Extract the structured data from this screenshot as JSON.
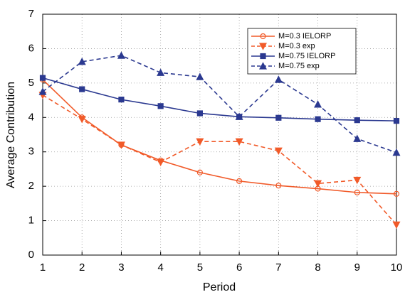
{
  "chart_data": {
    "type": "line",
    "x_label": "Period",
    "y_label": "Average Contribution",
    "x": [
      1,
      2,
      3,
      4,
      5,
      6,
      7,
      8,
      9,
      10
    ],
    "series": [
      {
        "name": "M=0.3 IELORP",
        "color": "#f15a29",
        "marker": "circle",
        "dashed": false,
        "values": [
          5.1,
          4.0,
          3.2,
          2.75,
          2.4,
          2.15,
          2.02,
          1.93,
          1.82,
          1.78
        ]
      },
      {
        "name": "M=0.3 exp",
        "color": "#f15a29",
        "marker": "triangle-down",
        "dashed": true,
        "values": [
          4.65,
          3.95,
          3.2,
          2.7,
          3.3,
          3.3,
          3.03,
          2.08,
          2.18,
          0.88
        ]
      },
      {
        "name": "M=0.75 IELORP",
        "color": "#2b3990",
        "marker": "square",
        "dashed": false,
        "values": [
          5.15,
          4.82,
          4.52,
          4.33,
          4.12,
          4.02,
          3.99,
          3.95,
          3.92,
          3.9
        ]
      },
      {
        "name": "M=0.75 exp",
        "color": "#2b3990",
        "marker": "triangle-up",
        "dashed": true,
        "values": [
          4.75,
          5.62,
          5.8,
          5.3,
          5.18,
          4.02,
          5.1,
          4.38,
          3.38,
          2.98
        ]
      }
    ],
    "xlim": [
      1,
      10
    ],
    "xticks": [
      1,
      2,
      3,
      4,
      5,
      6,
      7,
      8,
      9,
      10
    ],
    "ylim": [
      0,
      7
    ],
    "yticks": [
      0,
      1,
      2,
      3,
      4,
      5,
      6,
      7
    ],
    "grid": true,
    "legend": "upper right"
  }
}
